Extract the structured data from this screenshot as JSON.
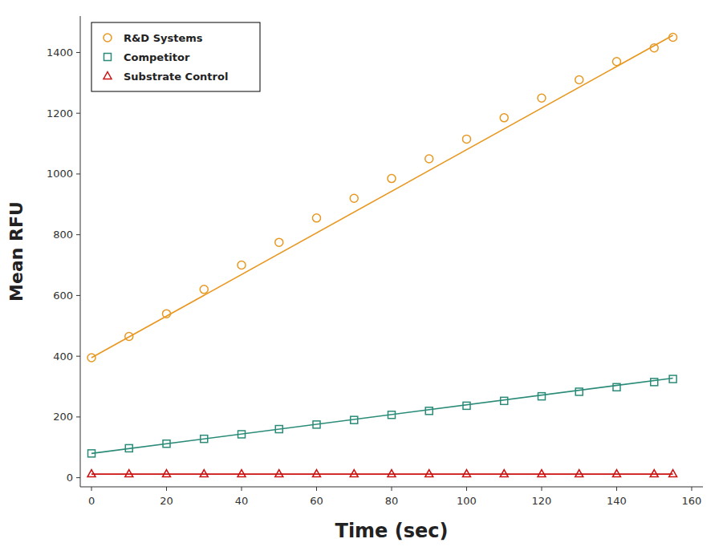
{
  "chart_data": {
    "type": "scatter",
    "xlabel": "Time (sec)",
    "ylabel": "Mean RFU",
    "xlim": [
      -3,
      163
    ],
    "ylim": [
      -30,
      1520
    ],
    "xticks": [
      0,
      20,
      40,
      60,
      80,
      100,
      120,
      140,
      160
    ],
    "yticks": [
      0,
      200,
      400,
      600,
      800,
      1000,
      1200,
      1400
    ],
    "x": [
      0,
      10,
      20,
      30,
      40,
      50,
      60,
      70,
      80,
      90,
      100,
      110,
      120,
      130,
      140,
      150,
      155
    ],
    "series": [
      {
        "name": "R&D Systems",
        "color": "#E89820",
        "marker": "circle",
        "values": [
          395,
          465,
          540,
          620,
          700,
          775,
          855,
          920,
          985,
          1050,
          1115,
          1185,
          1250,
          1310,
          1370,
          1415,
          1450
        ],
        "fit_x": [
          0,
          155
        ],
        "fit_values": [
          395,
          1456.75
        ]
      },
      {
        "name": "Competitor",
        "color": "#2A8B78",
        "marker": "square",
        "values": [
          80,
          97,
          112,
          128,
          143,
          160,
          175,
          190,
          207,
          220,
          237,
          253,
          268,
          283,
          298,
          315,
          325
        ],
        "fit_x": [
          0,
          155
        ],
        "fit_values": [
          80,
          328
        ]
      },
      {
        "name": "Substrate Control",
        "color": "#CC1111",
        "marker": "triangle",
        "values": [
          12,
          12,
          12,
          12,
          12,
          12,
          12,
          12,
          12,
          12,
          12,
          12,
          12,
          12,
          12,
          12,
          12
        ],
        "fit_x": [
          0,
          155
        ],
        "fit_values": [
          12,
          12
        ]
      }
    ],
    "legend": "upper left",
    "grid": false
  }
}
